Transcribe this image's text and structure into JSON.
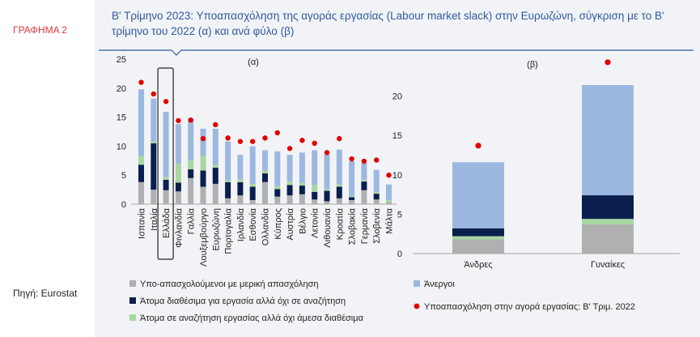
{
  "figure_label": "ΓΡΑΦΗΜΑ 2",
  "source": "Πηγή: Eurostat",
  "title": "Β' Τρίμηνο 2023: Υποαπασχόληση της αγοράς εργασίας (Labour market slack) στην Ευρωζώνη, σύγκριση με το Β' τρίμηνο του 2022 (α) και ανά φύλο (β)",
  "colors": {
    "underemployed": "#b0b0b0",
    "available_not_seeking": "#0b1f4e",
    "seeking_not_available": "#a8d8a0",
    "unemployed": "#9db8e0",
    "dot": "#e00000",
    "highlight_box": "#222222"
  },
  "legend": [
    {
      "key": "underemployed",
      "label": "Υπο-απασχολούμενοι με μερική απασχόληση"
    },
    {
      "key": "available_not_seeking",
      "label": "Άτομα διαθέσιμα για εργασία αλλά όχι σε αναζήτηση"
    },
    {
      "key": "seeking_not_available",
      "label": "Άτομα σε αναζήτηση εργασίας αλλά όχι άμεσα διαθέσιμα"
    },
    {
      "key": "unemployed",
      "label": "Άνεργοι"
    },
    {
      "key": "dot",
      "label": "Υποαπασχόληση στην αγορά εργασίας: Β' Τριμ. 2022"
    }
  ],
  "chart_data": [
    {
      "panel_label": "(α)",
      "type": "bar",
      "stacked": true,
      "ylim": [
        0,
        25
      ],
      "yticks": [
        0,
        5,
        10,
        15,
        20,
        25
      ],
      "highlight_category": "Ελλάδα",
      "categories": [
        "Ισπανία",
        "Ιταλία",
        "Ελλάδα",
        "Φινλανδία",
        "Γαλλία",
        "Λουξεμβούργο",
        "Ευρωζώνη",
        "Πορτογαλία",
        "Ιρλανδία",
        "Εσθονία",
        "Ολλανδία",
        "Κύπρος",
        "Αυστρία",
        "Βέλγιο",
        "Λετονία",
        "Λιθουανία",
        "Κροατία",
        "Σλοβακία",
        "Γερμανία",
        "Σλοβενία",
        "Μάλτα"
      ],
      "series": [
        {
          "key": "underemployed",
          "name": "Υπο-απασχολούμενοι με μερική απασχόληση",
          "values": [
            3.8,
            2.5,
            2.4,
            2.2,
            4.5,
            3.0,
            3.5,
            1.0,
            1.5,
            0.7,
            3.8,
            1.3,
            1.5,
            1.7,
            0.8,
            0.5,
            1.0,
            0.7,
            2.4,
            0.8,
            0.4
          ]
        },
        {
          "key": "available_not_seeking",
          "name": "Άτομα διαθέσιμα για εργασία αλλά όχι σε αναζήτηση",
          "values": [
            3.0,
            8.0,
            1.8,
            1.5,
            1.5,
            2.8,
            2.8,
            2.8,
            2.3,
            2.3,
            1.5,
            1.3,
            1.8,
            1.5,
            1.3,
            1.8,
            2.0,
            0.5,
            1.5,
            1.0,
            0.0
          ]
        },
        {
          "key": "seeking_not_available",
          "name": "Άτομα σε αναζήτηση εργασίας αλλά όχι άμεσα διαθέσιμα",
          "values": [
            1.5,
            0.3,
            0.5,
            3.3,
            1.5,
            2.5,
            0.5,
            0.3,
            0.5,
            0.5,
            0.5,
            0.5,
            0.6,
            0.5,
            1.2,
            0.3,
            0.4,
            0.2,
            0.3,
            0.3,
            0.3
          ]
        },
        {
          "key": "unemployed",
          "name": "Άνεργοι",
          "values": [
            11.5,
            7.4,
            11.2,
            6.8,
            7.2,
            4.7,
            6.2,
            6.7,
            4.2,
            6.5,
            3.5,
            6.0,
            4.6,
            5.2,
            6.0,
            6.0,
            6.0,
            6.0,
            2.9,
            3.8,
            2.7
          ]
        }
      ],
      "markers": {
        "key": "dot",
        "name": "Υποαπασχόληση στην αγορά εργασίας: Β' Τριμ. 2022",
        "values": [
          21.0,
          19.0,
          17.7,
          14.4,
          14.5,
          11.3,
          13.7,
          11.4,
          10.8,
          10.8,
          11.4,
          12.3,
          9.6,
          11.0,
          10.5,
          8.9,
          11.3,
          7.8,
          7.4,
          7.6,
          5.0
        ]
      }
    },
    {
      "panel_label": "(β)",
      "type": "bar",
      "stacked": true,
      "ylim": [
        0,
        25
      ],
      "yticks": [
        0,
        5,
        10,
        15,
        20
      ],
      "categories": [
        "Άνδρες",
        "Γυναίκες"
      ],
      "series": [
        {
          "key": "underemployed",
          "name": "Υπο-απασχολούμενοι με μερική απασχόληση",
          "values": [
            1.8,
            3.7
          ]
        },
        {
          "key": "seeking_not_available",
          "name": "Άτομα σε αναζήτηση εργασίας αλλά όχι άμεσα διαθέσιμα",
          "values": [
            0.4,
            0.7
          ]
        },
        {
          "key": "available_not_seeking",
          "name": "Άτομα διαθέσιμα για εργασία αλλά όχι σε αναζήτηση",
          "values": [
            1.0,
            3.0
          ]
        },
        {
          "key": "unemployed",
          "name": "Άνεργοι",
          "values": [
            8.4,
            14.0
          ]
        }
      ],
      "markers": {
        "key": "dot",
        "name": "Υποαπασχόληση στην αγορά εργασίας: Β' Τριμ. 2022",
        "values": [
          13.7,
          24.3
        ]
      }
    }
  ]
}
